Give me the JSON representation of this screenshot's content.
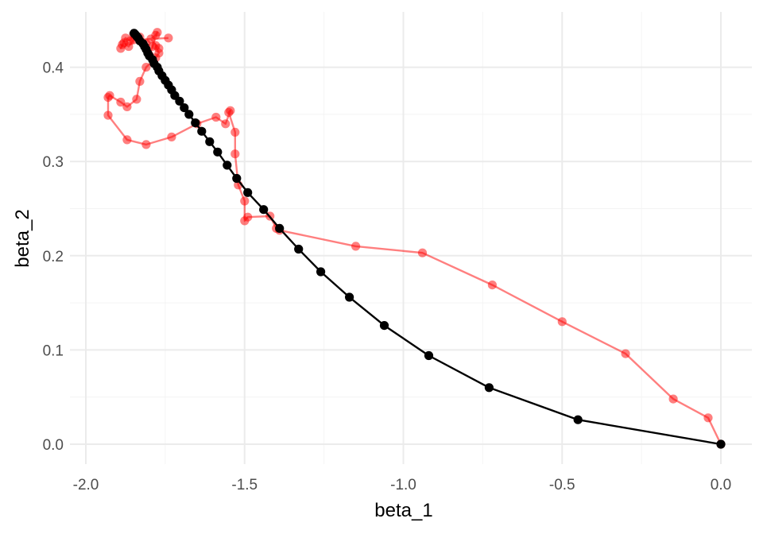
{
  "chart_data": {
    "type": "line",
    "xlabel": "beta_1",
    "ylabel": "beta_2",
    "xlim": [
      -2.0,
      0.1
    ],
    "ylim": [
      -0.02,
      0.45
    ],
    "x_ticks": [
      -2.0,
      -1.5,
      -1.0,
      -0.5,
      0.0
    ],
    "x_tick_labels": [
      "-2.0",
      "-1.5",
      "-1.0",
      "-0.5",
      "0.0"
    ],
    "y_ticks": [
      0.0,
      0.1,
      0.2,
      0.3,
      0.4
    ],
    "y_tick_labels": [
      "0.0",
      "0.1",
      "0.2",
      "0.3",
      "0.4"
    ],
    "grid": true,
    "legend": "none",
    "series": [
      {
        "color": "#000000",
        "opacity": 1.0,
        "points": [
          [
            0.0,
            0.0
          ],
          [
            -0.45,
            0.026
          ],
          [
            -0.73,
            0.06
          ],
          [
            -0.92,
            0.094
          ],
          [
            -1.06,
            0.126
          ],
          [
            -1.17,
            0.156
          ],
          [
            -1.26,
            0.183
          ],
          [
            -1.33,
            0.207
          ],
          [
            -1.39,
            0.229
          ],
          [
            -1.44,
            0.249
          ],
          [
            -1.49,
            0.267
          ],
          [
            -1.525,
            0.282
          ],
          [
            -1.555,
            0.296
          ],
          [
            -1.585,
            0.31
          ],
          [
            -1.61,
            0.321
          ],
          [
            -1.635,
            0.332
          ],
          [
            -1.655,
            0.341
          ],
          [
            -1.675,
            0.35
          ],
          [
            -1.69,
            0.357
          ],
          [
            -1.705,
            0.364
          ],
          [
            -1.72,
            0.37
          ],
          [
            -1.73,
            0.376
          ],
          [
            -1.74,
            0.381
          ],
          [
            -1.75,
            0.386
          ],
          [
            -1.76,
            0.391
          ],
          [
            -1.77,
            0.396
          ],
          [
            -1.775,
            0.4
          ],
          [
            -1.785,
            0.404
          ],
          [
            -1.79,
            0.408
          ],
          [
            -1.8,
            0.412
          ],
          [
            -1.805,
            0.415
          ],
          [
            -1.81,
            0.419
          ],
          [
            -1.815,
            0.422
          ],
          [
            -1.82,
            0.425
          ],
          [
            -1.83,
            0.428
          ],
          [
            -1.835,
            0.431
          ],
          [
            -1.84,
            0.433
          ],
          [
            -1.845,
            0.435
          ],
          [
            -1.848,
            0.436
          ]
        ]
      },
      {
        "color": "#ff0000",
        "opacity": 0.5,
        "points": [
          [
            0.0,
            0.0
          ],
          [
            -0.04,
            0.028
          ],
          [
            -0.15,
            0.048
          ],
          [
            -0.3,
            0.096
          ],
          [
            -0.5,
            0.13
          ],
          [
            -0.72,
            0.169
          ],
          [
            -0.94,
            0.203
          ],
          [
            -1.15,
            0.21
          ],
          [
            -1.39,
            0.227
          ],
          [
            -1.4,
            0.229
          ],
          [
            -1.42,
            0.242
          ],
          [
            -1.49,
            0.241
          ],
          [
            -1.5,
            0.237
          ],
          [
            -1.5,
            0.258
          ],
          [
            -1.52,
            0.275
          ],
          [
            -1.53,
            0.308
          ],
          [
            -1.53,
            0.331
          ],
          [
            -1.55,
            0.352
          ],
          [
            -1.545,
            0.354
          ],
          [
            -1.56,
            0.34
          ],
          [
            -1.59,
            0.347
          ],
          [
            -1.65,
            0.34
          ],
          [
            -1.73,
            0.326
          ],
          [
            -1.81,
            0.318
          ],
          [
            -1.87,
            0.323
          ],
          [
            -1.93,
            0.349
          ],
          [
            -1.93,
            0.368
          ],
          [
            -1.925,
            0.37
          ],
          [
            -1.89,
            0.363
          ],
          [
            -1.87,
            0.358
          ],
          [
            -1.84,
            0.366
          ],
          [
            -1.83,
            0.385
          ],
          [
            -1.81,
            0.4
          ],
          [
            -1.78,
            0.41
          ],
          [
            -1.77,
            0.415
          ],
          [
            -1.78,
            0.423
          ],
          [
            -1.77,
            0.42
          ],
          [
            -1.795,
            0.43
          ],
          [
            -1.78,
            0.434
          ],
          [
            -1.775,
            0.437
          ],
          [
            -1.79,
            0.422
          ],
          [
            -1.8,
            0.413
          ],
          [
            -1.81,
            0.425
          ],
          [
            -1.83,
            0.432
          ],
          [
            -1.85,
            0.435
          ],
          [
            -1.86,
            0.428
          ],
          [
            -1.875,
            0.431
          ],
          [
            -1.885,
            0.424
          ],
          [
            -1.89,
            0.42
          ],
          [
            -1.88,
            0.426
          ],
          [
            -1.865,
            0.422
          ],
          [
            -1.85,
            0.429
          ],
          [
            -1.74,
            0.431
          ]
        ]
      }
    ]
  }
}
